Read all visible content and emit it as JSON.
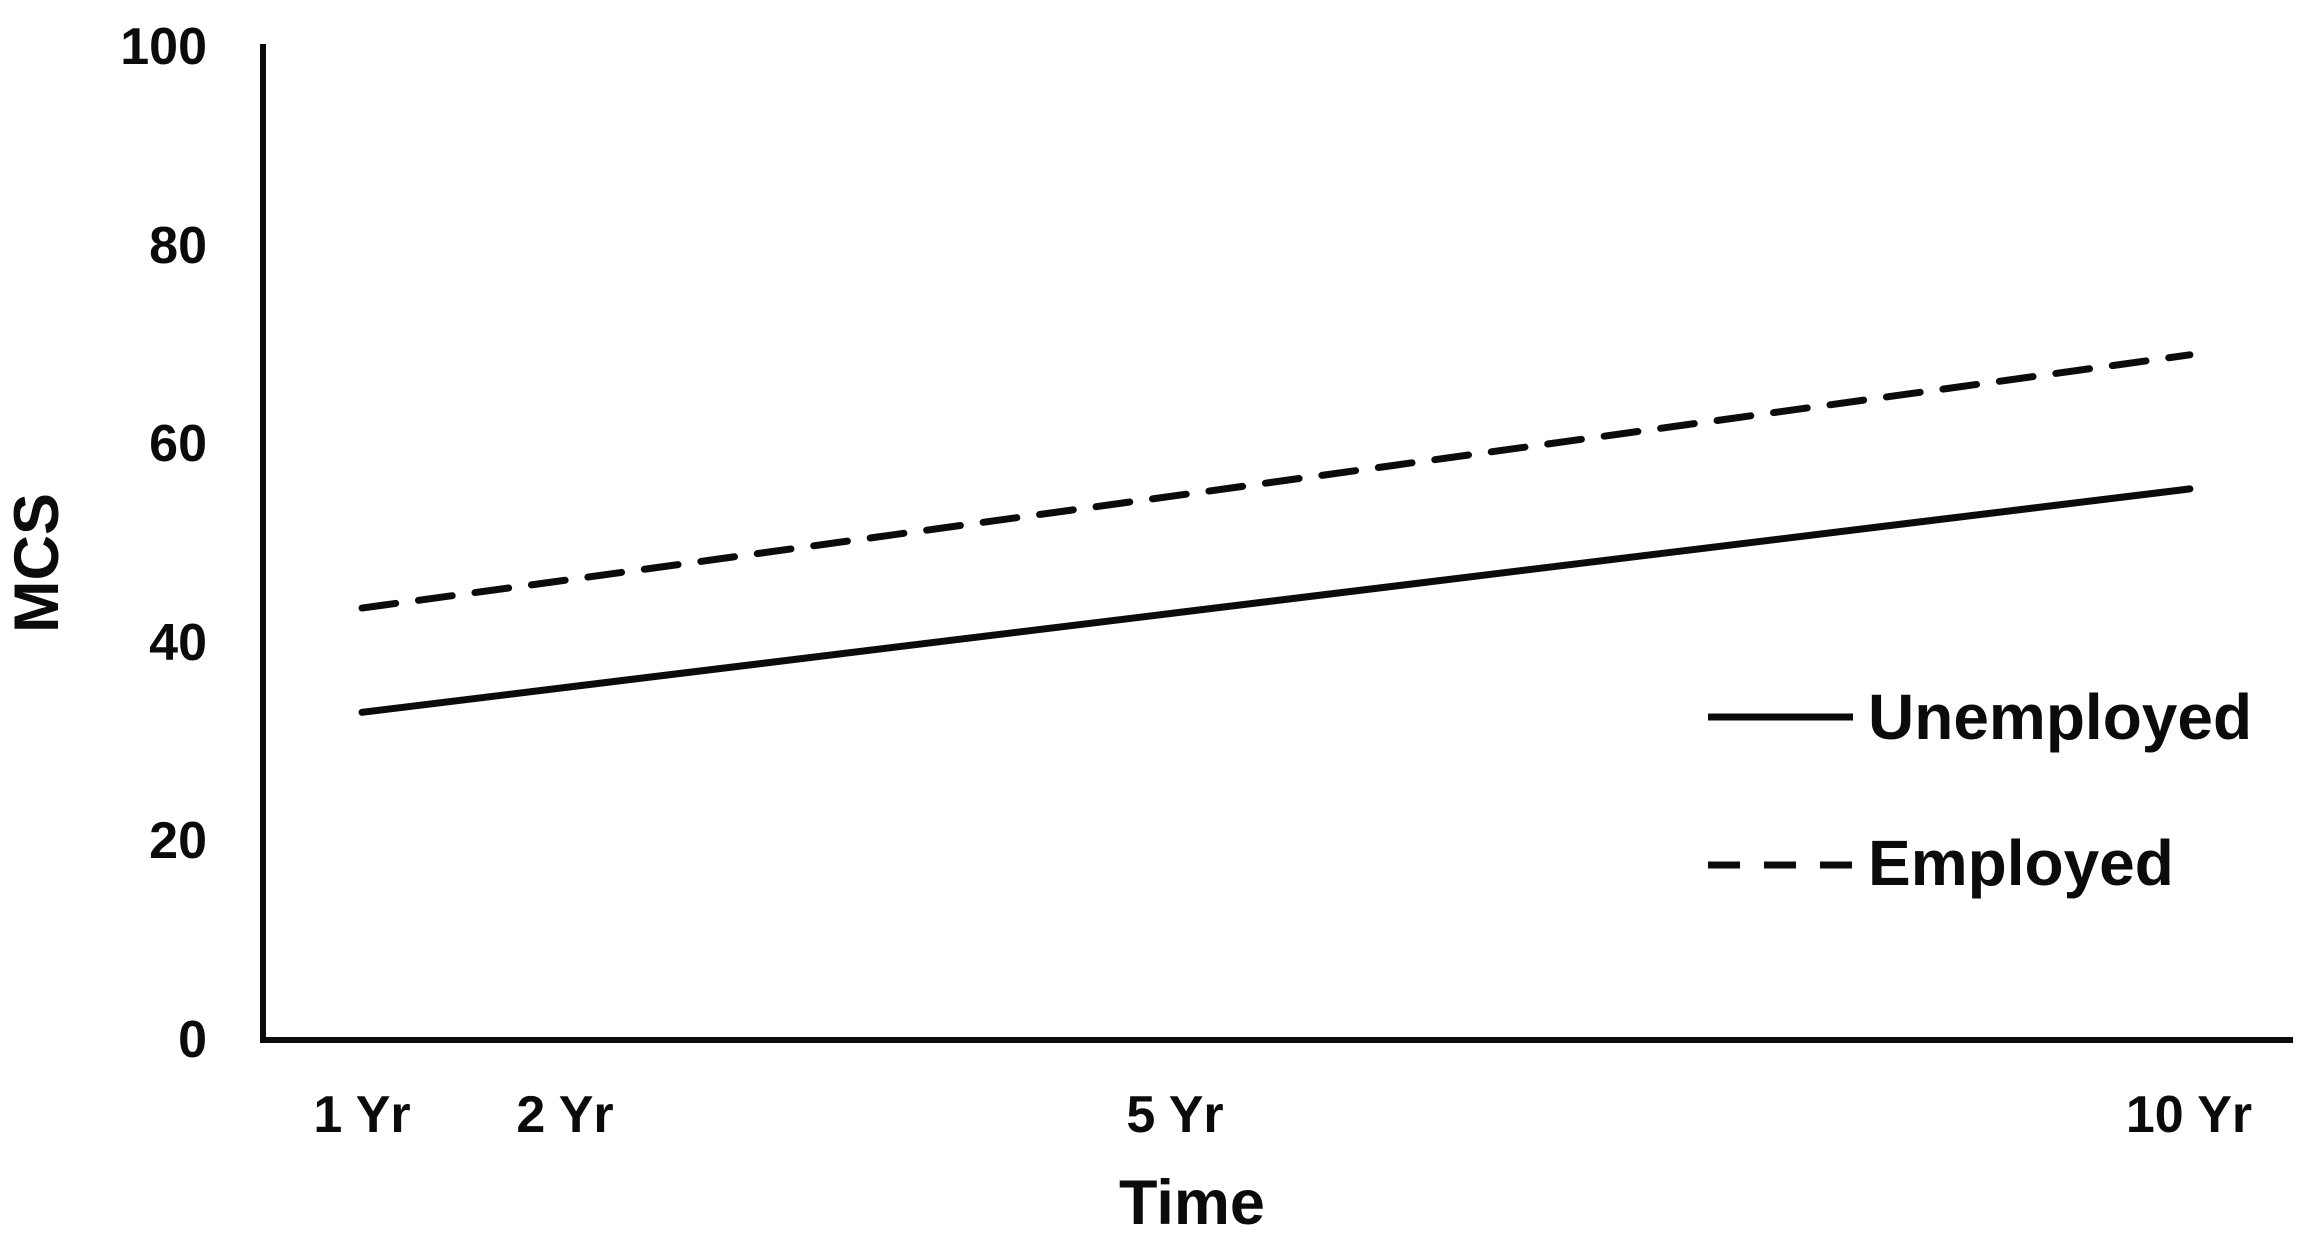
{
  "chart_data": {
    "type": "line",
    "title": "",
    "xlabel": "Time",
    "ylabel": "MCS",
    "x_categories": [
      "1 Yr",
      "2 Yr",
      "5 Yr",
      "10 Yr"
    ],
    "x_years": [
      1,
      2,
      5,
      10
    ],
    "series": [
      {
        "name": "Unemployed",
        "line_style": "solid",
        "values": [
          33,
          35.5,
          43,
          55.5
        ]
      },
      {
        "name": "Employed",
        "line_style": "dashed",
        "values": [
          43.5,
          46.3,
          54.8,
          69
        ]
      }
    ],
    "ylim": [
      0,
      100
    ],
    "yticks": [
      0,
      20,
      40,
      60,
      80,
      100
    ],
    "grid": false,
    "legend_position": "right-middle",
    "line_color": "#0b0b0b",
    "background_color": "#ffffff"
  },
  "axes": {
    "y": {
      "title": "MCS",
      "tick_labels": [
        "100",
        "80",
        "60",
        "40",
        "20",
        "0"
      ]
    },
    "x": {
      "title": "Time",
      "tick_labels": [
        "1 Yr",
        "2 Yr",
        "5 Yr",
        "10 Yr"
      ]
    }
  },
  "legend": {
    "items": [
      {
        "label": "Unemployed",
        "line_style": "solid"
      },
      {
        "label": "Employed",
        "line_style": "dashed"
      }
    ]
  }
}
